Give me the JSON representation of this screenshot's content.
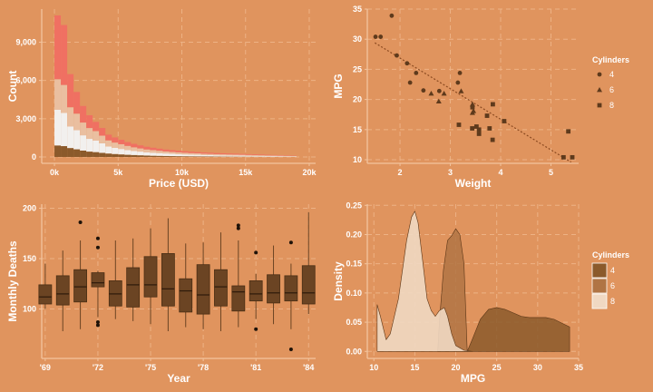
{
  "colors": {
    "background": "#E0945E",
    "axis": "#F2C49E",
    "grid": "#EDB285",
    "text": "#ffffff",
    "dark": "#6B4423",
    "mid": "#A8693A"
  },
  "chart_data": [
    {
      "id": "hist",
      "type": "bar",
      "subtype": "stacked-histogram",
      "xlabel": "Price (USD)",
      "ylabel": "Count",
      "xlim": [
        -1000,
        20500
      ],
      "ylim": [
        -500,
        11600
      ],
      "xticks": [
        0,
        5000,
        10000,
        15000,
        20000
      ],
      "xtick_labels": [
        "0k",
        "5k",
        "10k",
        "15k",
        "20k"
      ],
      "yticks": [
        0,
        3000,
        6000,
        9000
      ],
      "ytick_labels": [
        "0",
        "3,000",
        "6,000",
        "9,000"
      ],
      "bin_edges": [
        0,
        500,
        1000,
        1500,
        2000,
        2500,
        3000,
        3500,
        4000,
        4500,
        5000,
        5500,
        6000,
        6500,
        7000,
        7500,
        8000,
        8500,
        9000,
        9500,
        10000,
        10500,
        11000,
        11500,
        12000,
        12500,
        13000,
        13500,
        14000,
        14500,
        15000,
        15500,
        16000,
        16500,
        17000,
        17500,
        18000,
        18500,
        19000
      ],
      "series": [
        {
          "color": "#8B5A2B",
          "values": [
            900,
            850,
            700,
            600,
            500,
            420,
            380,
            320,
            270,
            230,
            200,
            170,
            150,
            130,
            110,
            95,
            85,
            75,
            65,
            58,
            52,
            46,
            42,
            38,
            34,
            30,
            28,
            26,
            24,
            22,
            20,
            18,
            16,
            14,
            12,
            10,
            9,
            8
          ]
        },
        {
          "color": "#F2F0EE",
          "values": [
            2800,
            2600,
            1700,
            1500,
            1200,
            1000,
            900,
            750,
            550,
            480,
            430,
            380,
            330,
            290,
            260,
            240,
            220,
            200,
            180,
            165,
            150,
            140,
            130,
            120,
            110,
            100,
            95,
            90,
            85,
            80,
            75,
            70,
            65,
            60,
            55,
            50,
            45,
            40
          ]
        },
        {
          "color": "#EABFA0",
          "values": [
            2400,
            2200,
            1500,
            1300,
            1000,
            850,
            750,
            600,
            480,
            420,
            370,
            320,
            280,
            250,
            220,
            200,
            180,
            160,
            150,
            140,
            130,
            120,
            110,
            100,
            95,
            90,
            85,
            80,
            75,
            70,
            65,
            60,
            55,
            50,
            45,
            40,
            35,
            30
          ]
        },
        {
          "color": "#F07062",
          "values": [
            5000,
            4700,
            2600,
            1700,
            1300,
            1000,
            720,
            600,
            450,
            400,
            350,
            300,
            270,
            240,
            210,
            190,
            170,
            150,
            140,
            130,
            120,
            110,
            100,
            95,
            90,
            85,
            80,
            75,
            70,
            65,
            60,
            55,
            50,
            45,
            40,
            35,
            30,
            25
          ]
        }
      ]
    },
    {
      "id": "scatter",
      "type": "scatter",
      "xlabel": "Weight",
      "ylabel": "MPG",
      "xlim": [
        1.35,
        5.55
      ],
      "ylim": [
        9.4,
        35
      ],
      "xticks": [
        2,
        3,
        4,
        5
      ],
      "yticks": [
        10,
        15,
        20,
        25,
        30,
        35
      ],
      "legend": {
        "title": "Cylinders",
        "placement": "right",
        "labels": [
          "4",
          "6",
          "8"
        ]
      },
      "trend": {
        "x": [
          1.5,
          5.4
        ],
        "y": [
          29.4,
          9.6
        ]
      },
      "series": [
        {
          "name": "4",
          "shape": "circle",
          "x": [
            2.2,
            2.32,
            1.615,
            1.835,
            1.935,
            2.14,
            2.465,
            3.19,
            1.513,
            2.78,
            3.15
          ],
          "y": [
            22.8,
            24.4,
            30.4,
            33.9,
            27.3,
            26.0,
            21.5,
            24.4,
            30.4,
            21.4,
            22.8
          ]
        },
        {
          "name": "6",
          "shape": "triangle",
          "x": [
            2.62,
            2.875,
            3.215,
            3.44,
            3.46,
            3.44,
            2.77
          ],
          "y": [
            21.0,
            21.0,
            21.4,
            19.2,
            18.1,
            17.8,
            19.7
          ]
        },
        {
          "name": "8",
          "shape": "square",
          "x": [
            3.44,
            3.57,
            4.07,
            3.73,
            3.78,
            5.25,
            5.424,
            5.345,
            3.52,
            3.435,
            3.84,
            3.845,
            3.17,
            3.57
          ],
          "y": [
            18.7,
            14.3,
            16.4,
            17.3,
            15.2,
            10.4,
            10.4,
            14.7,
            15.5,
            15.2,
            13.3,
            19.2,
            15.8,
            15.0
          ]
        }
      ]
    },
    {
      "id": "box",
      "type": "box",
      "xlabel": "Year",
      "ylabel": "Monthly Deaths",
      "xlim": [
        1968.8,
        1984.4
      ],
      "ylim": [
        51,
        204
      ],
      "xticks": [
        1969,
        1972,
        1975,
        1978,
        1981,
        1984
      ],
      "xtick_labels": [
        "'69",
        "'72",
        "'75",
        "'78",
        "'81",
        "'84"
      ],
      "yticks": [
        100,
        150,
        200
      ],
      "x": [
        1969,
        1970,
        1971,
        1972,
        1973,
        1974,
        1975,
        1976,
        1977,
        1978,
        1979,
        1980,
        1981,
        1982,
        1983,
        1984
      ],
      "whisker_low": [
        100,
        78,
        80,
        92,
        90,
        88,
        85,
        78,
        82,
        80,
        78,
        82,
        90,
        85,
        80,
        95
      ],
      "q1": [
        105,
        104,
        107,
        122,
        103,
        102,
        112,
        103,
        97,
        95,
        103,
        98,
        108,
        106,
        108,
        105
      ],
      "median": [
        112,
        115,
        122,
        126,
        115,
        124,
        124,
        120,
        118,
        114,
        122,
        117,
        115,
        116,
        116,
        116
      ],
      "q3": [
        124,
        133,
        139,
        136,
        128,
        141,
        152,
        155,
        130,
        144,
        139,
        123,
        128,
        134,
        133,
        143
      ],
      "whisker_high": [
        145,
        158,
        168,
        138,
        168,
        170,
        180,
        190,
        165,
        166,
        176,
        168,
        135,
        163,
        145,
        196
      ],
      "outliers": [
        {
          "x": 1971,
          "y": 186
        },
        {
          "x": 1972,
          "y": 170
        },
        {
          "x": 1972,
          "y": 161
        },
        {
          "x": 1972,
          "y": 87
        },
        {
          "x": 1972,
          "y": 84
        },
        {
          "x": 1980,
          "y": 183
        },
        {
          "x": 1980,
          "y": 180
        },
        {
          "x": 1981,
          "y": 156
        },
        {
          "x": 1981,
          "y": 80
        },
        {
          "x": 1983,
          "y": 166
        },
        {
          "x": 1983,
          "y": 60
        }
      ]
    },
    {
      "id": "density",
      "type": "area",
      "subtype": "density",
      "xlabel": "MPG",
      "ylabel": "Density",
      "xlim": [
        9.2,
        35
      ],
      "ylim": [
        -0.012,
        0.252
      ],
      "xticks": [
        10,
        15,
        20,
        25,
        30,
        35
      ],
      "yticks": [
        0,
        0.05,
        0.1,
        0.15,
        0.2,
        0.25
      ],
      "ytick_labels": [
        "0.00",
        "0.05",
        "0.10",
        "0.15",
        "0.20",
        "0.25"
      ],
      "legend": {
        "title": "Cylinders",
        "placement": "right",
        "labels": [
          "4",
          "6",
          "8"
        ]
      },
      "series": [
        {
          "name": "4",
          "color": "#8B5A2B",
          "opacity": 0.85,
          "x": [
            21.4,
            22,
            23,
            24,
            25,
            26,
            27,
            28,
            29,
            30,
            31,
            32,
            33,
            33.9
          ],
          "y": [
            0,
            0.02,
            0.055,
            0.072,
            0.075,
            0.072,
            0.066,
            0.06,
            0.058,
            0.058,
            0.058,
            0.055,
            0.048,
            0.042
          ]
        },
        {
          "name": "6",
          "color": "#B07444",
          "opacity": 0.85,
          "x": [
            17.8,
            18,
            18.5,
            19,
            19.5,
            20,
            20.5,
            21,
            21.4
          ],
          "y": [
            0,
            0.05,
            0.14,
            0.19,
            0.198,
            0.21,
            0.2,
            0.15,
            0
          ]
        },
        {
          "name": "8",
          "color": "#F0D8C2",
          "opacity": 0.9,
          "x": [
            10.4,
            10.8,
            11.5,
            12,
            13,
            14,
            14.6,
            15,
            15.4,
            16,
            16.5,
            17,
            17.5,
            18,
            18.6,
            19,
            19.5,
            20,
            21,
            22
          ],
          "y": [
            0.08,
            0.06,
            0.02,
            0.03,
            0.09,
            0.19,
            0.23,
            0.24,
            0.22,
            0.15,
            0.09,
            0.07,
            0.06,
            0.07,
            0.075,
            0.06,
            0.03,
            0.01,
            0.002,
            0
          ]
        }
      ]
    }
  ]
}
